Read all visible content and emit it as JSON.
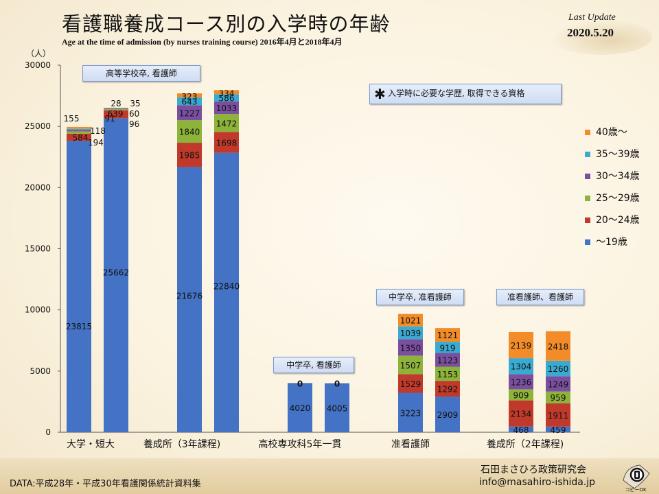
{
  "header": {
    "title": "看護職養成コース別の入学時の年齢",
    "subtitle": "Age at the time of admission (by nurses training course)  2016年4月と2018年4月",
    "last_update_label": "Last Update",
    "last_update_date": "2020.5.20"
  },
  "footer": {
    "source": "DATA:平成28年・平成30年看護関係統計資料集",
    "org": "石田まさひろ政策研究会",
    "email": "info@masahiro-ishida.jp",
    "logo_text": "コピーOK"
  },
  "colors": {
    "u19": "#4472c4",
    "a20_24": "#c0392b",
    "a25_29": "#8db33a",
    "a30_34": "#7b4fa0",
    "a35_39": "#3aaad0",
    "a40": "#f28c28"
  },
  "chart_data": {
    "type": "bar",
    "stacked": true,
    "title": "看護職養成コース別の入学時の年齢",
    "ylabel": "（人）",
    "ylim": [
      0,
      30000
    ],
    "yticks": [
      "0",
      "5000",
      "10000",
      "15000",
      "20000",
      "25000",
      "30000"
    ],
    "grid": false,
    "legend_position": "right",
    "group_labels": [
      "大学・短大",
      "養成所（3年課程)",
      "高校専攻科5年一貫",
      "准看護師",
      "養成所（2年課程)"
    ],
    "group_callouts": [
      "高等学校卒, 看護師",
      "",
      "中学卒, 看護師",
      "中学卒, 准看護師",
      "准看護師、看護師"
    ],
    "note": "入学時に必要な学歴, 取得できる資格",
    "note_symbol": "✱",
    "series": [
      {
        "name": "〜19歳",
        "color_key": "u19",
        "values": [
          23815,
          25662,
          21676,
          22840,
          4020,
          4005,
          3223,
          2909,
          468,
          459
        ]
      },
      {
        "name": "20〜24歳",
        "color_key": "a20_24",
        "values": [
          584,
          639,
          1985,
          1698,
          null,
          null,
          1529,
          1292,
          2134,
          1911
        ]
      },
      {
        "name": "25〜29歳",
        "color_key": "a25_29",
        "values": [
          194,
          96,
          1840,
          1472,
          null,
          null,
          1507,
          1153,
          909,
          959
        ]
      },
      {
        "name": "30〜34歳",
        "color_key": "a30_34",
        "values": [
          118,
          60,
          1227,
          1033,
          null,
          null,
          1350,
          1123,
          1236,
          1249
        ]
      },
      {
        "name": "35〜39歳",
        "color_key": "a35_39",
        "values": [
          91,
          35,
          643,
          586,
          null,
          null,
          1039,
          919,
          1304,
          1260
        ]
      },
      {
        "name": "40歳〜",
        "color_key": "a40",
        "values": [
          155,
          28,
          323,
          334,
          0,
          0,
          1021,
          1121,
          2139,
          2418
        ]
      }
    ]
  }
}
